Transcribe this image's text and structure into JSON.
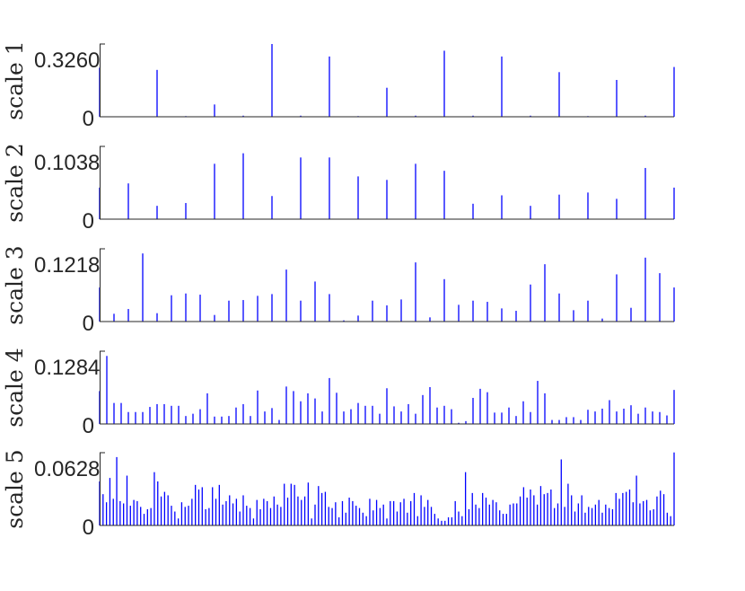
{
  "chart_data": [
    {
      "type": "bar",
      "ylabel": "scale 1",
      "ylim": [
        0,
        0.326
      ],
      "yticks": [
        0,
        0.326
      ],
      "ytick_labels": [
        "0",
        "0.3260"
      ],
      "values": [
        0.22,
        0.002,
        0.21,
        0.003,
        0.055,
        0.005,
        0.326,
        0.005,
        0.27,
        0.003,
        0.13,
        0.005,
        0.296,
        0.005,
        0.27,
        0.005,
        0.2,
        0.003,
        0.165,
        0.005,
        0.223
      ]
    },
    {
      "type": "bar",
      "ylabel": "scale 2",
      "ylim": [
        0,
        0.1038
      ],
      "yticks": [
        0,
        0.1038
      ],
      "ytick_labels": [
        "0",
        "0.1038"
      ],
      "values": [
        0.045,
        0.051,
        0.019,
        0.023,
        0.079,
        0.094,
        0.033,
        0.088,
        0.088,
        0.061,
        0.056,
        0.079,
        0.069,
        0.022,
        0.034,
        0.019,
        0.035,
        0.038,
        0.029,
        0.073,
        0.045
      ]
    },
    {
      "type": "bar",
      "ylabel": "scale 3",
      "ylim": [
        0,
        0.1218
      ],
      "yticks": [
        0,
        0.1218
      ],
      "ytick_labels": [
        "0",
        "0.1218"
      ],
      "values": [
        0.057,
        0.013,
        0.021,
        0.114,
        0.014,
        0.044,
        0.047,
        0.045,
        0.011,
        0.035,
        0.036,
        0.043,
        0.046,
        0.087,
        0.035,
        0.067,
        0.046,
        0.002,
        0.01,
        0.035,
        0.027,
        0.037,
        0.099,
        0.007,
        0.071,
        0.028,
        0.035,
        0.033,
        0.022,
        0.018,
        0.062,
        0.096,
        0.047,
        0.019,
        0.035,
        0.005,
        0.079,
        0.023,
        0.107,
        0.081,
        0.057
      ]
    },
    {
      "type": "bar",
      "ylabel": "scale 4",
      "ylim": [
        0,
        0.1284
      ],
      "yticks": [
        0,
        0.1284
      ],
      "ytick_labels": [
        "0",
        "0.1284"
      ],
      "values": [
        0.058,
        0.12,
        0.037,
        0.037,
        0.021,
        0.021,
        0.021,
        0.03,
        0.035,
        0.035,
        0.032,
        0.032,
        0.014,
        0.018,
        0.026,
        0.054,
        0.013,
        0.013,
        0.014,
        0.029,
        0.035,
        0.014,
        0.059,
        0.022,
        0.028,
        0.007,
        0.066,
        0.058,
        0.04,
        0.054,
        0.045,
        0.022,
        0.081,
        0.055,
        0.022,
        0.026,
        0.037,
        0.032,
        0.032,
        0.018,
        0.063,
        0.031,
        0.022,
        0.035,
        0.018,
        0.051,
        0.065,
        0.029,
        0.032,
        0.026,
        0.002,
        0.005,
        0.046,
        0.062,
        0.056,
        0.02,
        0.02,
        0.029,
        0.014,
        0.04,
        0.021,
        0.076,
        0.054,
        0.007,
        0.007,
        0.012,
        0.012,
        0.007,
        0.025,
        0.022,
        0.027,
        0.042,
        0.022,
        0.027,
        0.033,
        0.018,
        0.029,
        0.022,
        0.021,
        0.015,
        0.06
      ]
    },
    {
      "type": "bar",
      "ylabel": "scale 5",
      "ylim": [
        0,
        0.0628
      ],
      "yticks": [
        0,
        0.0628
      ],
      "ytick_labels": [
        "0",
        "0.0628"
      ],
      "values": [
        0.038,
        0.027,
        0.02,
        0.041,
        0.023,
        0.059,
        0.021,
        0.019,
        0.043,
        0.017,
        0.022,
        0.021,
        0.016,
        0.01,
        0.014,
        0.015,
        0.046,
        0.038,
        0.025,
        0.029,
        0.026,
        0.017,
        0.012,
        0.006,
        0.02,
        0.016,
        0.017,
        0.023,
        0.035,
        0.031,
        0.033,
        0.014,
        0.015,
        0.033,
        0.023,
        0.035,
        0.018,
        0.021,
        0.026,
        0.019,
        0.023,
        0.012,
        0.026,
        0.017,
        0.015,
        0.006,
        0.022,
        0.014,
        0.023,
        0.021,
        0.015,
        0.025,
        0.018,
        0.016,
        0.036,
        0.024,
        0.036,
        0.035,
        0.025,
        0.022,
        0.025,
        0.037,
        0.006,
        0.018,
        0.034,
        0.028,
        0.029,
        0.016,
        0.015,
        0.02,
        0.007,
        0.021,
        0.011,
        0.024,
        0.021,
        0.017,
        0.015,
        0.011,
        0.008,
        0.023,
        0.013,
        0.022,
        0.015,
        0.018,
        0.006,
        0.021,
        0.021,
        0.012,
        0.02,
        0.023,
        0.011,
        0.021,
        0.028,
        0.008,
        0.026,
        0.016,
        0.022,
        0.016,
        0.01,
        0.006,
        0.004,
        0.004,
        0.007,
        0.007,
        0.021,
        0.012,
        0.008,
        0.046,
        0.014,
        0.028,
        0.018,
        0.015,
        0.028,
        0.024,
        0.018,
        0.022,
        0.02,
        0.013,
        0.01,
        0.01,
        0.018,
        0.019,
        0.019,
        0.025,
        0.033,
        0.024,
        0.031,
        0.026,
        0.018,
        0.034,
        0.027,
        0.028,
        0.031,
        0.015,
        0.019,
        0.057,
        0.016,
        0.036,
        0.026,
        0.012,
        0.019,
        0.026,
        0.011,
        0.016,
        0.015,
        0.018,
        0.022,
        0.011,
        0.018,
        0.015,
        0.014,
        0.028,
        0.023,
        0.028,
        0.029,
        0.031,
        0.02,
        0.043,
        0.019,
        0.021,
        0.022,
        0.013,
        0.014,
        0.025,
        0.03,
        0.027,
        0.011,
        0.008,
        0.063
      ]
    }
  ],
  "colors": {
    "stem": "#0000ff",
    "axis": "#262626"
  }
}
